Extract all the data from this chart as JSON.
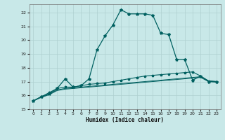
{
  "xlabel": "Humidex (Indice chaleur)",
  "bg_color": "#c8e8e8",
  "grid_color": "#afd0d0",
  "line_color": "#006060",
  "xlim": [
    -0.5,
    23.5
  ],
  "ylim": [
    15,
    22.6
  ],
  "yticks": [
    15,
    16,
    17,
    18,
    19,
    20,
    21,
    22
  ],
  "xticks": [
    0,
    1,
    2,
    3,
    4,
    5,
    6,
    7,
    8,
    9,
    10,
    11,
    12,
    13,
    14,
    15,
    16,
    17,
    18,
    19,
    20,
    21,
    22,
    23
  ],
  "series1_x": [
    0,
    1,
    2,
    3,
    4,
    5,
    6,
    7,
    8,
    9,
    10,
    11,
    12,
    13,
    14,
    15,
    16,
    17,
    18,
    19,
    20,
    21,
    22,
    23
  ],
  "series1_y": [
    15.6,
    15.9,
    16.1,
    16.5,
    17.2,
    16.6,
    16.7,
    17.2,
    19.3,
    20.3,
    21.1,
    22.2,
    21.9,
    21.9,
    21.9,
    21.8,
    20.5,
    20.4,
    18.6,
    18.6,
    17.1,
    17.4,
    17.0,
    17.0
  ],
  "series2_x": [
    0,
    1,
    2,
    3,
    4,
    5,
    6,
    7,
    8,
    9,
    10,
    11,
    12,
    13,
    14,
    15,
    16,
    17,
    18,
    19,
    20,
    21,
    22,
    23
  ],
  "series2_y": [
    15.6,
    15.9,
    16.2,
    16.5,
    16.6,
    16.6,
    16.7,
    16.8,
    16.85,
    16.9,
    17.0,
    17.1,
    17.2,
    17.3,
    17.4,
    17.45,
    17.5,
    17.55,
    17.6,
    17.65,
    17.7,
    17.4,
    17.05,
    17.0
  ],
  "series3_x": [
    0,
    1,
    2,
    3,
    4,
    5,
    6,
    7,
    8,
    9,
    10,
    11,
    12,
    13,
    14,
    15,
    16,
    17,
    18,
    19,
    20,
    21,
    22,
    23
  ],
  "series3_y": [
    15.6,
    15.9,
    16.1,
    16.4,
    16.5,
    16.55,
    16.6,
    16.65,
    16.7,
    16.75,
    16.8,
    16.85,
    16.9,
    16.95,
    17.0,
    17.05,
    17.1,
    17.15,
    17.2,
    17.25,
    17.3,
    17.35,
    17.05,
    17.0
  ],
  "series4_x": [
    0,
    1,
    2,
    3,
    4,
    5,
    6,
    7,
    8,
    9,
    10,
    11,
    12,
    13,
    14,
    15,
    16,
    17,
    18,
    19,
    20,
    21,
    22,
    23
  ],
  "series4_y": [
    15.6,
    15.85,
    16.05,
    16.35,
    16.45,
    16.5,
    16.55,
    16.6,
    16.65,
    16.7,
    16.75,
    16.8,
    16.85,
    16.9,
    16.95,
    17.0,
    17.05,
    17.1,
    17.15,
    17.2,
    17.25,
    17.3,
    17.0,
    16.95
  ]
}
